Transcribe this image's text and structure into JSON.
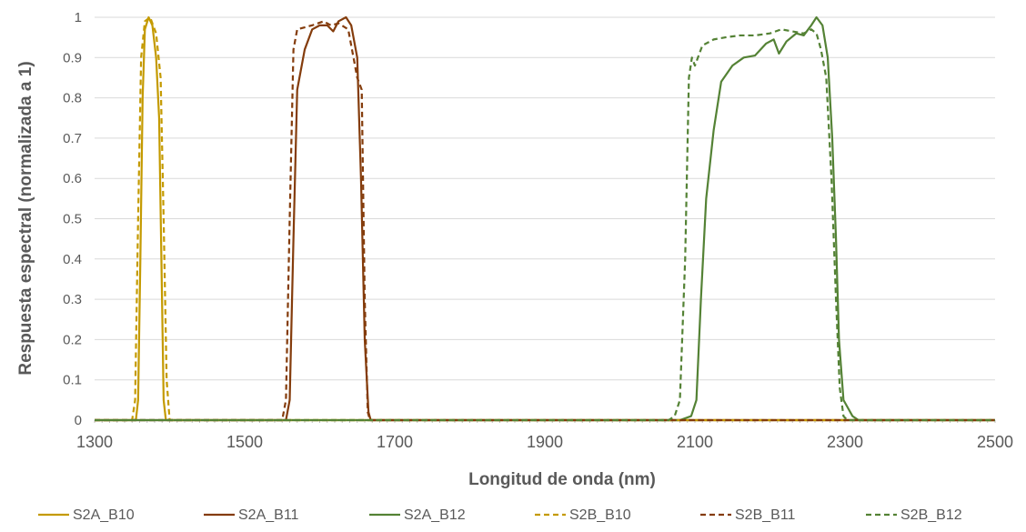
{
  "chart_data": {
    "type": "line",
    "title": "",
    "xlabel": "Longitud de onda (nm)",
    "ylabel": "Respuesta  espectral  (normalizada a 1)",
    "xlim": [
      1300,
      2500
    ],
    "ylim": [
      0,
      1
    ],
    "x_ticks": [
      "1300",
      "1500",
      "1700",
      "1900",
      "2100",
      "2300",
      "2500"
    ],
    "y_ticks": [
      "0",
      "0.1",
      "0.2",
      "0.3",
      "0.4",
      "0.5",
      "0.6",
      "0.7",
      "0.8",
      "0.9",
      "1"
    ],
    "grid": "horizontal",
    "legend_position": "bottom",
    "series": [
      {
        "name": "S2A_B10",
        "color": "#c49a00",
        "dash": "solid",
        "points": [
          [
            1300,
            0
          ],
          [
            1355,
            0
          ],
          [
            1358,
            0.05
          ],
          [
            1361,
            0.4
          ],
          [
            1364,
            0.8
          ],
          [
            1367,
            0.97
          ],
          [
            1372,
            1.0
          ],
          [
            1377,
            0.98
          ],
          [
            1382,
            0.9
          ],
          [
            1386,
            0.75
          ],
          [
            1389,
            0.4
          ],
          [
            1392,
            0.05
          ],
          [
            1395,
            0
          ],
          [
            2500,
            0
          ]
        ]
      },
      {
        "name": "S2A_B11",
        "color": "#843c0c",
        "dash": "solid",
        "points": [
          [
            1300,
            0
          ],
          [
            1555,
            0
          ],
          [
            1560,
            0.05
          ],
          [
            1565,
            0.45
          ],
          [
            1570,
            0.82
          ],
          [
            1580,
            0.92
          ],
          [
            1590,
            0.97
          ],
          [
            1600,
            0.98
          ],
          [
            1610,
            0.98
          ],
          [
            1618,
            0.965
          ],
          [
            1625,
            0.99
          ],
          [
            1635,
            1.0
          ],
          [
            1642,
            0.98
          ],
          [
            1650,
            0.9
          ],
          [
            1655,
            0.6
          ],
          [
            1660,
            0.2
          ],
          [
            1665,
            0.02
          ],
          [
            1668,
            0
          ],
          [
            2500,
            0
          ]
        ]
      },
      {
        "name": "S2A_B12",
        "color": "#548235",
        "dash": "solid",
        "points": [
          [
            1300,
            0
          ],
          [
            2080,
            0
          ],
          [
            2095,
            0.01
          ],
          [
            2102,
            0.05
          ],
          [
            2108,
            0.3
          ],
          [
            2115,
            0.55
          ],
          [
            2125,
            0.72
          ],
          [
            2135,
            0.84
          ],
          [
            2150,
            0.88
          ],
          [
            2165,
            0.9
          ],
          [
            2180,
            0.905
          ],
          [
            2195,
            0.935
          ],
          [
            2205,
            0.945
          ],
          [
            2212,
            0.91
          ],
          [
            2222,
            0.94
          ],
          [
            2235,
            0.96
          ],
          [
            2245,
            0.955
          ],
          [
            2255,
            0.98
          ],
          [
            2262,
            1.0
          ],
          [
            2270,
            0.98
          ],
          [
            2277,
            0.9
          ],
          [
            2283,
            0.7
          ],
          [
            2288,
            0.45
          ],
          [
            2292,
            0.2
          ],
          [
            2298,
            0.05
          ],
          [
            2310,
            0.01
          ],
          [
            2318,
            0
          ],
          [
            2500,
            0
          ]
        ]
      },
      {
        "name": "S2B_B10",
        "color": "#c49a00",
        "dash": "dashed",
        "points": [
          [
            1300,
            0
          ],
          [
            1350,
            0
          ],
          [
            1354,
            0.05
          ],
          [
            1358,
            0.5
          ],
          [
            1362,
            0.9
          ],
          [
            1367,
            0.99
          ],
          [
            1374,
            1.0
          ],
          [
            1382,
            0.96
          ],
          [
            1388,
            0.85
          ],
          [
            1392,
            0.5
          ],
          [
            1396,
            0.1
          ],
          [
            1400,
            0
          ],
          [
            2500,
            0
          ]
        ]
      },
      {
        "name": "S2B_B11",
        "color": "#843c0c",
        "dash": "dashed",
        "points": [
          [
            1300,
            0
          ],
          [
            1550,
            0
          ],
          [
            1555,
            0.05
          ],
          [
            1560,
            0.5
          ],
          [
            1565,
            0.92
          ],
          [
            1570,
            0.97
          ],
          [
            1590,
            0.98
          ],
          [
            1605,
            0.99
          ],
          [
            1615,
            0.98
          ],
          [
            1625,
            0.985
          ],
          [
            1638,
            0.97
          ],
          [
            1645,
            0.9
          ],
          [
            1650,
            0.85
          ],
          [
            1656,
            0.82
          ],
          [
            1660,
            0.3
          ],
          [
            1664,
            0.02
          ],
          [
            1667,
            0
          ],
          [
            2500,
            0
          ]
        ]
      },
      {
        "name": "S2B_B12",
        "color": "#548235",
        "dash": "dashed",
        "points": [
          [
            1300,
            0
          ],
          [
            2065,
            0
          ],
          [
            2073,
            0.01
          ],
          [
            2080,
            0.05
          ],
          [
            2087,
            0.4
          ],
          [
            2092,
            0.85
          ],
          [
            2096,
            0.9
          ],
          [
            2100,
            0.88
          ],
          [
            2110,
            0.93
          ],
          [
            2125,
            0.945
          ],
          [
            2140,
            0.95
          ],
          [
            2160,
            0.955
          ],
          [
            2180,
            0.955
          ],
          [
            2200,
            0.96
          ],
          [
            2215,
            0.97
          ],
          [
            2230,
            0.965
          ],
          [
            2245,
            0.96
          ],
          [
            2255,
            0.97
          ],
          [
            2262,
            0.96
          ],
          [
            2268,
            0.92
          ],
          [
            2275,
            0.85
          ],
          [
            2282,
            0.6
          ],
          [
            2288,
            0.3
          ],
          [
            2293,
            0.08
          ],
          [
            2298,
            0.01
          ],
          [
            2303,
            0
          ],
          [
            2500,
            0
          ]
        ]
      }
    ]
  }
}
